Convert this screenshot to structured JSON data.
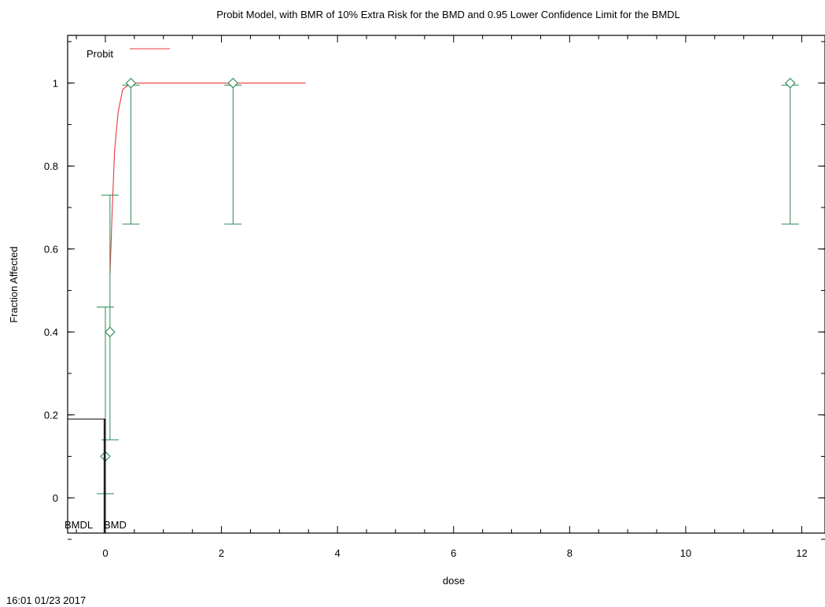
{
  "chart_data": {
    "type": "scatter",
    "title": "Probit Model, with BMR of 10% Extra Risk for the BMD and 0.95 Lower Confidence Limit for the BMDL",
    "xlabel": "dose",
    "ylabel": "Fraction Affected",
    "xlim": [
      -0.65,
      12.4
    ],
    "ylim": [
      -0.085,
      1.115
    ],
    "x_ticks": [
      0,
      2,
      4,
      6,
      8,
      10,
      12
    ],
    "y_ticks": [
      0,
      0.2,
      0.4,
      0.6,
      0.8,
      1
    ],
    "x_tick_labels": [
      "0",
      "2",
      "4",
      "6",
      "8",
      "10",
      "12"
    ],
    "y_tick_labels": [
      "0",
      "0.2",
      "0.4",
      "0.6",
      "0.8",
      "1"
    ],
    "legend": {
      "label": "Probit",
      "placement": "top-left"
    },
    "colors": {
      "model": "#e8383d",
      "data": "#2a8a55",
      "bmd": "#000000"
    },
    "observations": [
      {
        "dose": 0.0,
        "fraction": 0.1,
        "lower": 0.01,
        "upper": 0.46
      },
      {
        "dose": 0.08,
        "fraction": 0.4,
        "lower": 0.14,
        "upper": 0.73
      },
      {
        "dose": 0.44,
        "fraction": 1.0,
        "lower": 0.66,
        "upper": 0.995
      },
      {
        "dose": 2.2,
        "fraction": 1.0,
        "lower": 0.66,
        "upper": 0.995
      },
      {
        "dose": 11.8,
        "fraction": 1.0,
        "lower": 0.66,
        "upper": 0.995
      }
    ],
    "model_curve": {
      "x": [
        0.08,
        0.12,
        0.16,
        0.22,
        0.3,
        0.44,
        1.0,
        2.2,
        3.45
      ],
      "y": [
        0.54,
        0.7,
        0.84,
        0.93,
        0.985,
        1.0,
        1.0,
        1.0,
        1.0
      ]
    },
    "bmr_level": 0.19,
    "bmdl": -0.02,
    "bmd": 0.0,
    "bmdl_label": "BMDL",
    "bmd_label": "BMD"
  },
  "footer": {
    "timestamp": "16:01 01/23 2017"
  }
}
